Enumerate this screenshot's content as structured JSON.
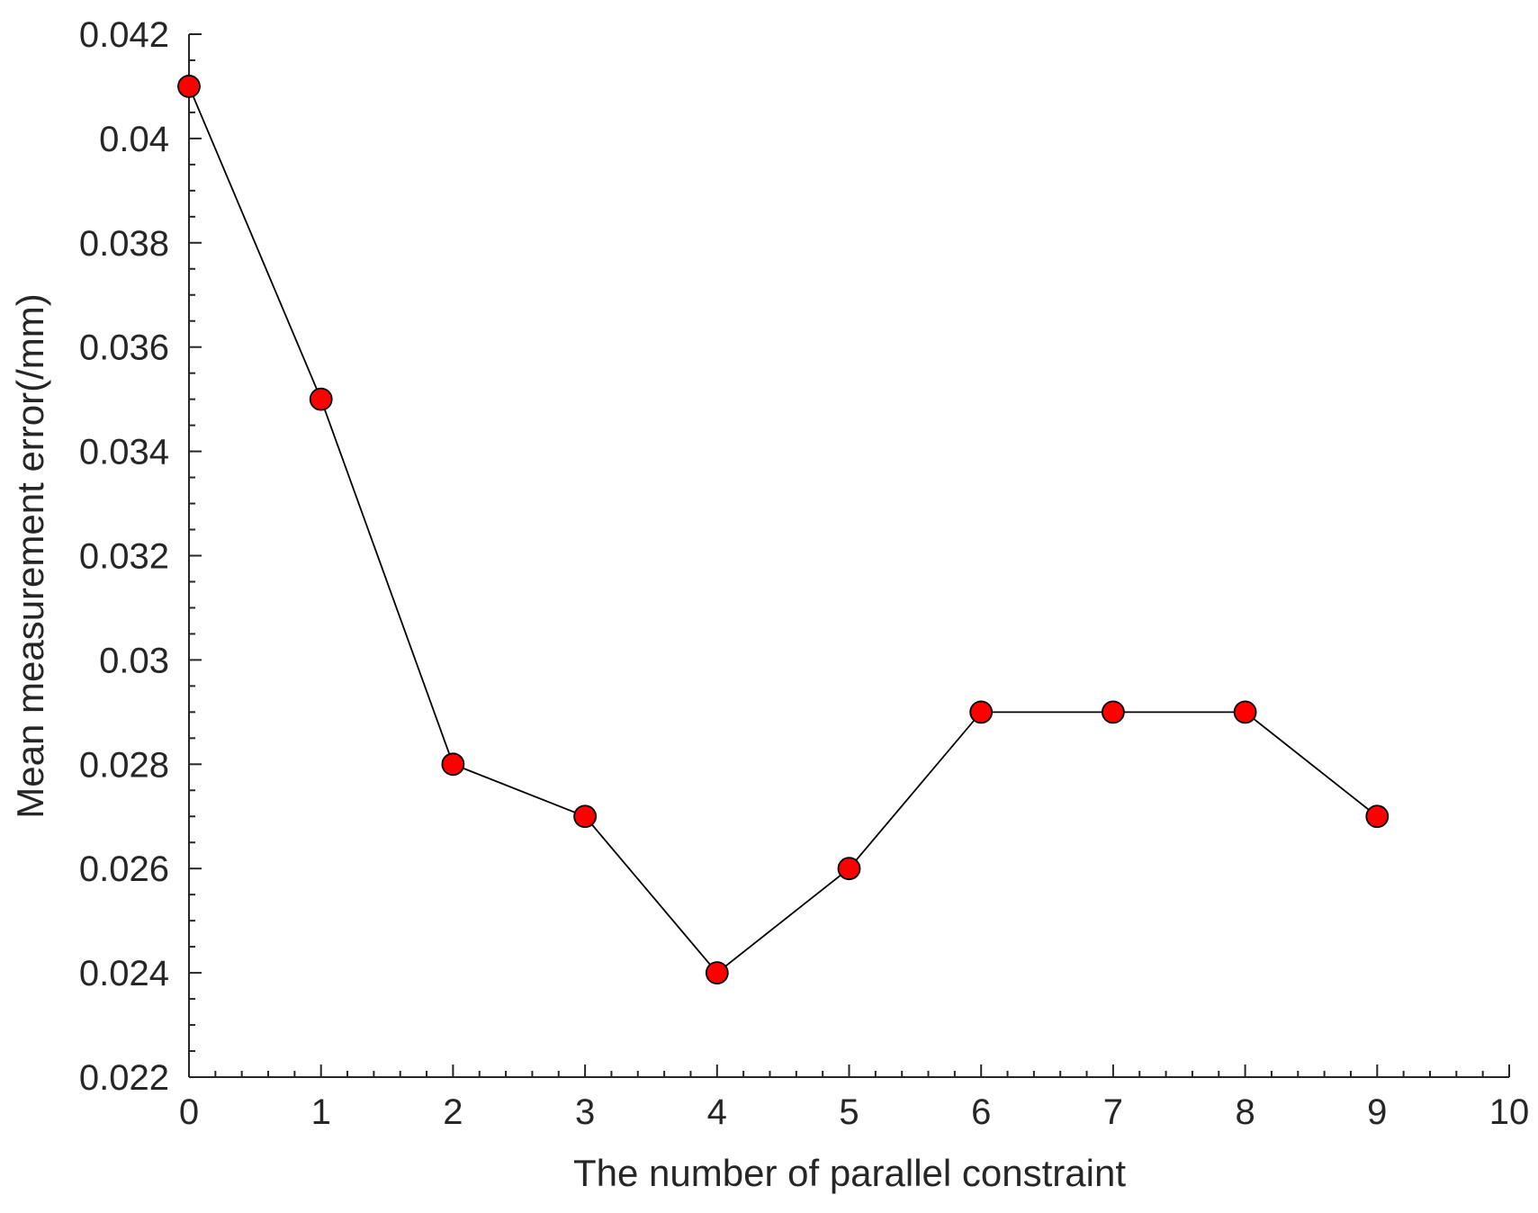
{
  "chart_data": {
    "type": "line",
    "title": "",
    "xlabel": "The number of parallel constraint",
    "ylabel": "Mean measurement error(/mm)",
    "xlim": [
      0,
      10
    ],
    "ylim": [
      0.022,
      0.042
    ],
    "x_ticks": [
      "0",
      "1",
      "2",
      "3",
      "4",
      "5",
      "6",
      "7",
      "8",
      "9",
      "10"
    ],
    "y_ticks": [
      "0.022",
      "0.024",
      "0.026",
      "0.028",
      "0.03",
      "0.032",
      "0.034",
      "0.036",
      "0.038",
      "0.04",
      "0.042"
    ],
    "grid": false,
    "series": [
      {
        "x": [
          0,
          1,
          2,
          3,
          4,
          5,
          6,
          7,
          8,
          9
        ],
        "y": [
          0.041,
          0.035,
          0.028,
          0.027,
          0.024,
          0.026,
          0.029,
          0.029,
          0.029,
          0.027
        ],
        "marker_color": "#ff0000",
        "line_color": "#000000"
      }
    ]
  }
}
